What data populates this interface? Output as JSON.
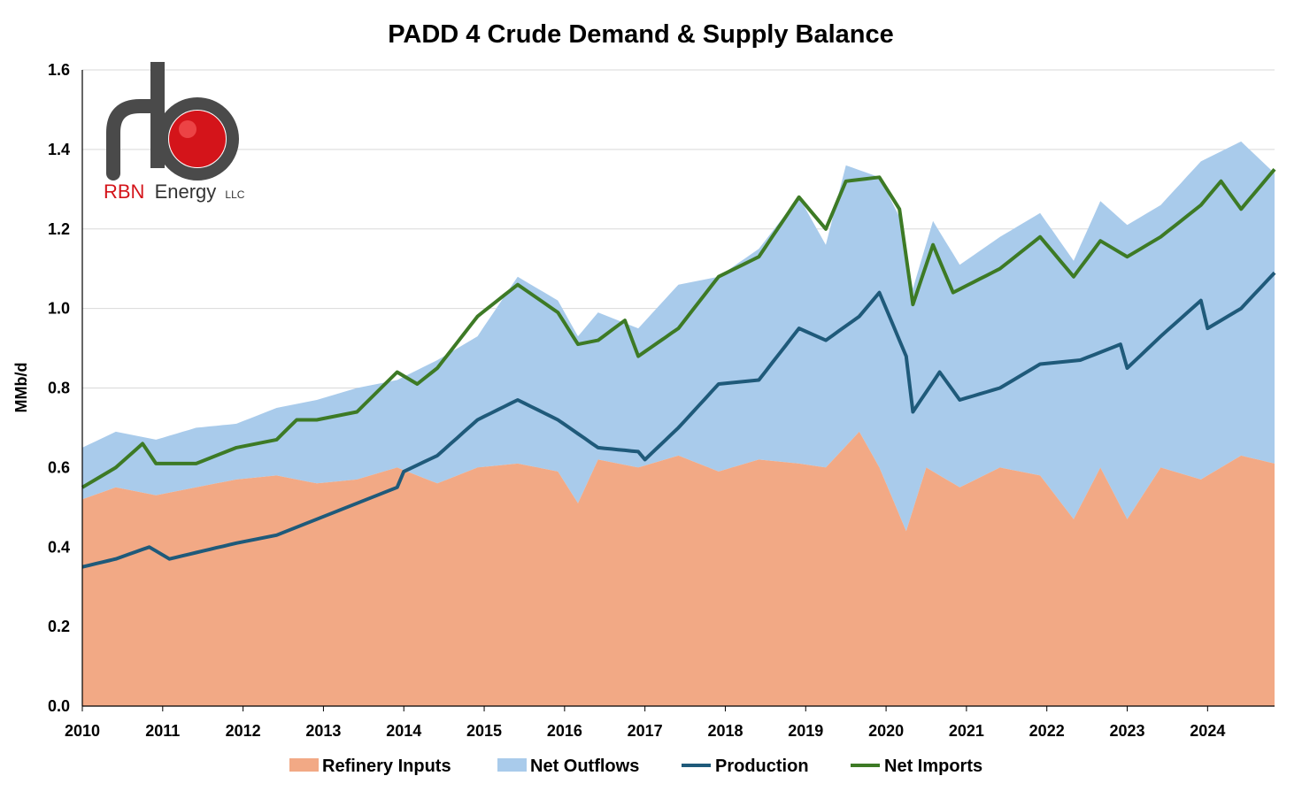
{
  "colors": {
    "refinery": "#F2A985",
    "outflows": "#A9CBEB",
    "production": "#1F5A7A",
    "imports": "#3D7A25",
    "gridline": "#D9D9D9",
    "logo_red": "#D4141A",
    "logo_gray": "#6F6F6F"
  },
  "logo": {
    "brand": "RBN",
    "name": "Energy",
    "suffix": "LLC"
  },
  "chart_data": {
    "type": "area",
    "title": "PADD 4 Crude Demand & Supply Balance",
    "xlabel": "",
    "ylabel": "MMb/d",
    "ylim": [
      0,
      1.6
    ],
    "y_ticks": [
      "0.0",
      "0.2",
      "0.4",
      "0.6",
      "0.8",
      "1.0",
      "1.2",
      "1.4",
      "1.6"
    ],
    "x_ticks": [
      "2010",
      "2011",
      "2012",
      "2013",
      "2014",
      "2015",
      "2016",
      "2017",
      "2018",
      "2019",
      "2020",
      "2021",
      "2022",
      "2023",
      "2024"
    ],
    "x_start": "2010-01",
    "x_end": "2024-11",
    "legend_position": "bottom",
    "grid": "horizontal",
    "series": [
      {
        "name": "Refinery Inputs",
        "kind": "stacked-area",
        "color_key": "refinery",
        "anchors": [
          [
            "2010-01",
            0.52
          ],
          [
            "2010-06",
            0.55
          ],
          [
            "2010-12",
            0.53
          ],
          [
            "2011-06",
            0.55
          ],
          [
            "2011-12",
            0.57
          ],
          [
            "2012-06",
            0.58
          ],
          [
            "2012-12",
            0.56
          ],
          [
            "2013-06",
            0.57
          ],
          [
            "2013-12",
            0.6
          ],
          [
            "2014-06",
            0.56
          ],
          [
            "2014-12",
            0.6
          ],
          [
            "2015-06",
            0.61
          ],
          [
            "2015-12",
            0.59
          ],
          [
            "2016-03",
            0.51
          ],
          [
            "2016-06",
            0.62
          ],
          [
            "2016-12",
            0.6
          ],
          [
            "2017-06",
            0.63
          ],
          [
            "2017-12",
            0.59
          ],
          [
            "2018-06",
            0.62
          ],
          [
            "2018-12",
            0.61
          ],
          [
            "2019-04",
            0.6
          ],
          [
            "2019-09",
            0.69
          ],
          [
            "2019-12",
            0.6
          ],
          [
            "2020-04",
            0.44
          ],
          [
            "2020-07",
            0.6
          ],
          [
            "2020-12",
            0.55
          ],
          [
            "2021-06",
            0.6
          ],
          [
            "2021-12",
            0.58
          ],
          [
            "2022-05",
            0.47
          ],
          [
            "2022-09",
            0.6
          ],
          [
            "2023-01",
            0.47
          ],
          [
            "2023-06",
            0.6
          ],
          [
            "2023-12",
            0.57
          ],
          [
            "2024-06",
            0.63
          ],
          [
            "2024-11",
            0.61
          ]
        ]
      },
      {
        "name": "Net Outflows",
        "kind": "stacked-area-total",
        "color_key": "outflows",
        "anchors": [
          [
            "2010-01",
            0.65
          ],
          [
            "2010-06",
            0.69
          ],
          [
            "2010-12",
            0.67
          ],
          [
            "2011-06",
            0.7
          ],
          [
            "2011-12",
            0.71
          ],
          [
            "2012-06",
            0.75
          ],
          [
            "2012-12",
            0.77
          ],
          [
            "2013-06",
            0.8
          ],
          [
            "2013-12",
            0.82
          ],
          [
            "2014-06",
            0.87
          ],
          [
            "2014-12",
            0.93
          ],
          [
            "2015-06",
            1.08
          ],
          [
            "2015-12",
            1.02
          ],
          [
            "2016-03",
            0.93
          ],
          [
            "2016-06",
            0.99
          ],
          [
            "2016-12",
            0.95
          ],
          [
            "2017-06",
            1.06
          ],
          [
            "2017-12",
            1.08
          ],
          [
            "2018-06",
            1.15
          ],
          [
            "2018-12",
            1.28
          ],
          [
            "2019-04",
            1.16
          ],
          [
            "2019-07",
            1.36
          ],
          [
            "2019-12",
            1.33
          ],
          [
            "2020-03",
            1.23
          ],
          [
            "2020-05",
            1.05
          ],
          [
            "2020-08",
            1.22
          ],
          [
            "2020-12",
            1.11
          ],
          [
            "2021-06",
            1.18
          ],
          [
            "2021-12",
            1.24
          ],
          [
            "2022-05",
            1.12
          ],
          [
            "2022-09",
            1.27
          ],
          [
            "2023-01",
            1.21
          ],
          [
            "2023-06",
            1.26
          ],
          [
            "2023-12",
            1.37
          ],
          [
            "2024-06",
            1.42
          ],
          [
            "2024-11",
            1.34
          ]
        ]
      },
      {
        "name": "Production",
        "kind": "line",
        "color_key": "production",
        "anchors": [
          [
            "2010-01",
            0.35
          ],
          [
            "2010-06",
            0.37
          ],
          [
            "2010-11",
            0.4
          ],
          [
            "2011-02",
            0.37
          ],
          [
            "2011-12",
            0.41
          ],
          [
            "2012-06",
            0.43
          ],
          [
            "2012-12",
            0.47
          ],
          [
            "2013-03",
            0.49
          ],
          [
            "2013-06",
            0.51
          ],
          [
            "2013-12",
            0.55
          ],
          [
            "2014-01",
            0.59
          ],
          [
            "2014-06",
            0.63
          ],
          [
            "2014-12",
            0.72
          ],
          [
            "2015-06",
            0.77
          ],
          [
            "2015-12",
            0.72
          ],
          [
            "2016-06",
            0.65
          ],
          [
            "2016-12",
            0.64
          ],
          [
            "2017-01",
            0.62
          ],
          [
            "2017-06",
            0.7
          ],
          [
            "2017-12",
            0.81
          ],
          [
            "2018-06",
            0.82
          ],
          [
            "2018-12",
            0.95
          ],
          [
            "2019-04",
            0.92
          ],
          [
            "2019-09",
            0.98
          ],
          [
            "2019-12",
            1.04
          ],
          [
            "2020-04",
            0.88
          ],
          [
            "2020-05",
            0.74
          ],
          [
            "2020-09",
            0.84
          ],
          [
            "2020-12",
            0.77
          ],
          [
            "2021-06",
            0.8
          ],
          [
            "2021-12",
            0.86
          ],
          [
            "2022-06",
            0.87
          ],
          [
            "2022-12",
            0.91
          ],
          [
            "2023-01",
            0.85
          ],
          [
            "2023-06",
            0.93
          ],
          [
            "2023-12",
            1.02
          ],
          [
            "2024-01",
            0.95
          ],
          [
            "2024-06",
            1.0
          ],
          [
            "2024-11",
            1.09
          ]
        ]
      },
      {
        "name": "Net Imports",
        "kind": "line",
        "color_key": "imports",
        "anchors": [
          [
            "2010-01",
            0.55
          ],
          [
            "2010-06",
            0.6
          ],
          [
            "2010-10",
            0.66
          ],
          [
            "2010-12",
            0.61
          ],
          [
            "2011-06",
            0.61
          ],
          [
            "2011-12",
            0.65
          ],
          [
            "2012-06",
            0.67
          ],
          [
            "2012-09",
            0.72
          ],
          [
            "2012-12",
            0.72
          ],
          [
            "2013-06",
            0.74
          ],
          [
            "2013-12",
            0.84
          ],
          [
            "2014-03",
            0.81
          ],
          [
            "2014-06",
            0.85
          ],
          [
            "2014-12",
            0.98
          ],
          [
            "2015-06",
            1.06
          ],
          [
            "2015-12",
            0.99
          ],
          [
            "2016-03",
            0.91
          ],
          [
            "2016-06",
            0.92
          ],
          [
            "2016-10",
            0.97
          ],
          [
            "2016-12",
            0.88
          ],
          [
            "2017-06",
            0.95
          ],
          [
            "2017-12",
            1.08
          ],
          [
            "2018-06",
            1.13
          ],
          [
            "2018-12",
            1.28
          ],
          [
            "2019-04",
            1.2
          ],
          [
            "2019-07",
            1.32
          ],
          [
            "2019-12",
            1.33
          ],
          [
            "2020-03",
            1.25
          ],
          [
            "2020-05",
            1.01
          ],
          [
            "2020-08",
            1.16
          ],
          [
            "2020-11",
            1.04
          ],
          [
            "2021-06",
            1.1
          ],
          [
            "2021-12",
            1.18
          ],
          [
            "2022-05",
            1.08
          ],
          [
            "2022-09",
            1.17
          ],
          [
            "2023-01",
            1.13
          ],
          [
            "2023-06",
            1.18
          ],
          [
            "2023-12",
            1.26
          ],
          [
            "2024-03",
            1.32
          ],
          [
            "2024-06",
            1.25
          ],
          [
            "2024-11",
            1.35
          ]
        ]
      }
    ]
  }
}
